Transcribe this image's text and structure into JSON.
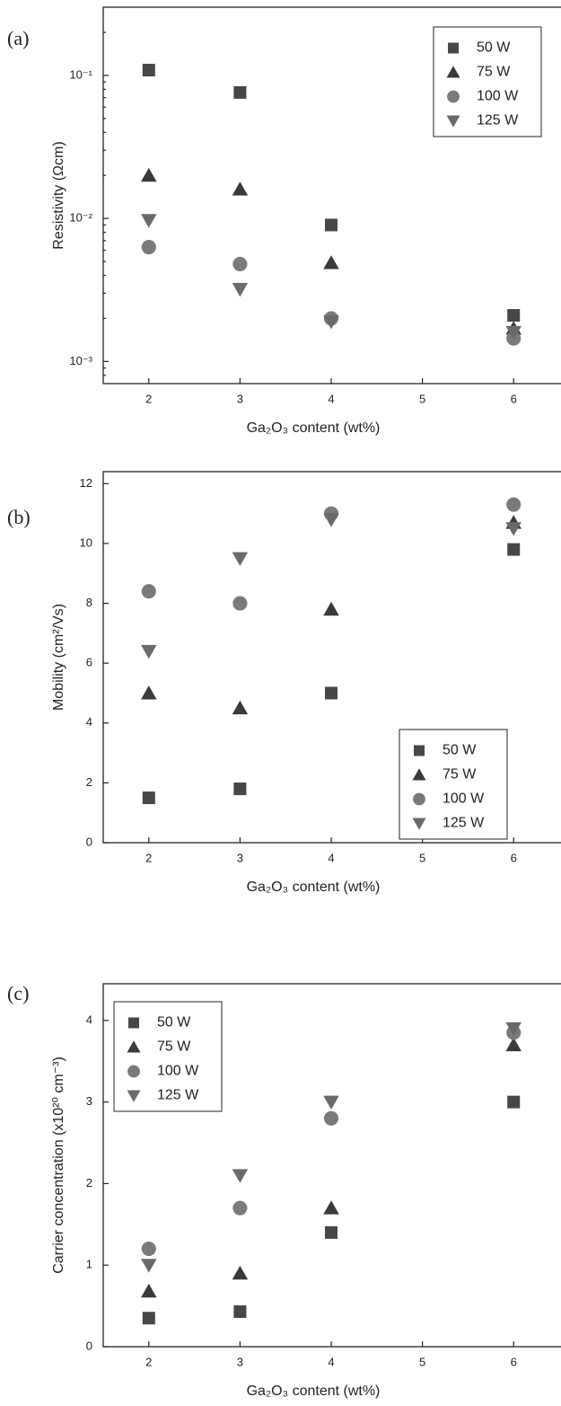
{
  "chart_data": [
    {
      "type": "scatter",
      "panel": "(a)",
      "x_label": "Ga₂O₃ content (wt%)",
      "y_label": "Resistivity (Ωcm)",
      "log_y": true,
      "legend": "top-right",
      "x": [
        2,
        3,
        4,
        6
      ],
      "xlim": [
        1.5,
        6.5
      ],
      "xticks": [
        2,
        3,
        4,
        5,
        6
      ],
      "ylim": [
        0.0007,
        0.3
      ],
      "yticks": [
        {
          "value": 0.001,
          "label": "10⁻³"
        },
        {
          "value": 0.01,
          "label": "10⁻²"
        },
        {
          "value": 0.1,
          "label": "10⁻¹"
        }
      ],
      "series": [
        {
          "name": "50 W",
          "marker": "square",
          "color": "#474747",
          "values": [
            0.109,
            0.076,
            0.009,
            0.0021
          ]
        },
        {
          "name": "75 W",
          "marker": "triangle",
          "color": "#3a3a3a",
          "values": [
            0.02,
            0.016,
            0.0049,
            0.0017
          ]
        },
        {
          "name": "100 W",
          "marker": "circle",
          "color": "#7a7a7a",
          "values": [
            0.0063,
            0.0048,
            0.002,
            0.00145
          ]
        },
        {
          "name": "125 W",
          "marker": "triangle-down",
          "color": "#6a6a6a",
          "values": [
            0.0097,
            0.0032,
            0.0019,
            0.0016
          ]
        }
      ]
    },
    {
      "type": "scatter",
      "panel": "(b)",
      "x_label": "Ga₂O₃ content (wt%)",
      "y_label": "Mobility (cm²/Vs)",
      "log_y": false,
      "legend": "bottom-right",
      "x": [
        2,
        3,
        4,
        6
      ],
      "xlim": [
        1.5,
        6.5
      ],
      "xticks": [
        2,
        3,
        4,
        5,
        6
      ],
      "ylim": [
        0,
        12.4
      ],
      "yticks": [
        0,
        2,
        4,
        6,
        8,
        10,
        12
      ],
      "series": [
        {
          "name": "50 W",
          "marker": "square",
          "color": "#474747",
          "values": [
            1.5,
            1.8,
            5.0,
            9.8
          ]
        },
        {
          "name": "75 W",
          "marker": "triangle",
          "color": "#3a3a3a",
          "values": [
            5.0,
            4.5,
            7.8,
            10.7
          ]
        },
        {
          "name": "100 W",
          "marker": "circle",
          "color": "#7a7a7a",
          "values": [
            8.4,
            8.0,
            11.0,
            11.3
          ]
        },
        {
          "name": "125 W",
          "marker": "triangle-down",
          "color": "#6a6a6a",
          "values": [
            6.4,
            9.5,
            10.8,
            10.5
          ]
        }
      ]
    },
    {
      "type": "scatter",
      "panel": "(c)",
      "x_label": "Ga₂O₃ content (wt%)",
      "y_label": "Carrier concentration (x10²⁰ cm⁻³)",
      "log_y": false,
      "legend": "top-left",
      "x": [
        2,
        3,
        4,
        6
      ],
      "xlim": [
        1.5,
        6.5
      ],
      "xticks": [
        2,
        3,
        4,
        5,
        6
      ],
      "ylim": [
        0,
        4.45
      ],
      "yticks": [
        0,
        1,
        2,
        3,
        4
      ],
      "series": [
        {
          "name": "50 W",
          "marker": "square",
          "color": "#474747",
          "values": [
            0.35,
            0.43,
            1.4,
            3.0
          ]
        },
        {
          "name": "75 W",
          "marker": "triangle",
          "color": "#3a3a3a",
          "values": [
            0.68,
            0.9,
            1.7,
            3.7
          ]
        },
        {
          "name": "100 W",
          "marker": "circle",
          "color": "#7a7a7a",
          "values": [
            1.2,
            1.7,
            2.8,
            3.85
          ]
        },
        {
          "name": "125 W",
          "marker": "triangle-down",
          "color": "#6a6a6a",
          "values": [
            1.0,
            2.1,
            3.0,
            3.9
          ]
        }
      ]
    }
  ]
}
